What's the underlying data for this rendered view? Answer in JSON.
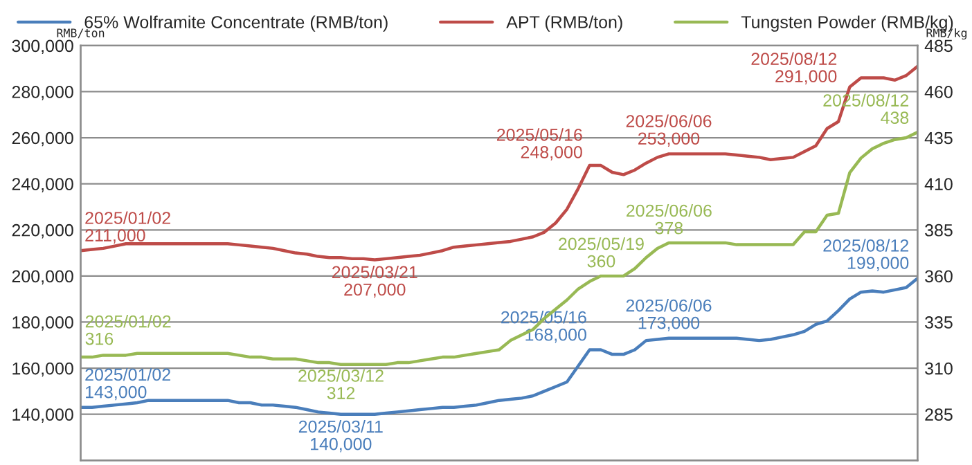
{
  "chart_data": {
    "type": "line",
    "ylabel": "RMB/ton",
    "y2label": "RMB/kg",
    "categories": [
      null,
      null,
      null,
      null,
      null,
      null,
      null,
      null,
      null,
      null,
      null,
      null,
      null,
      null,
      null,
      null,
      null,
      null,
      null,
      null,
      null,
      null,
      null,
      null,
      null,
      null,
      null,
      null,
      null,
      null,
      null,
      null,
      null,
      null,
      null,
      null,
      null,
      null,
      null,
      null,
      null,
      null,
      null,
      null,
      null,
      null,
      null,
      null,
      null,
      null,
      null,
      null,
      null,
      null,
      null,
      null,
      null,
      null,
      null,
      null,
      null,
      null,
      null,
      null,
      null,
      null,
      null,
      null,
      null,
      null,
      null,
      null,
      null,
      null,
      null
    ],
    "ylim": [
      120000,
      300000
    ],
    "yticks": [
      {
        "value": 140000,
        "label": "140,000"
      },
      {
        "value": 160000,
        "label": "160,000"
      },
      {
        "value": 180000,
        "label": "180,000"
      },
      {
        "value": 200000,
        "label": "200,000"
      },
      {
        "value": 220000,
        "label": "220,000"
      },
      {
        "value": 240000,
        "label": "240,000"
      },
      {
        "value": 260000,
        "label": "260,000"
      },
      {
        "value": 280000,
        "label": "280,000"
      },
      {
        "value": 300000,
        "label": "300,000"
      }
    ],
    "y2lim": [
      260,
      485
    ],
    "y2ticks": [
      285,
      310,
      335,
      360,
      385,
      410,
      435,
      460,
      485
    ],
    "grid": "y",
    "legend": "top",
    "tick_labels": "y",
    "marker": "none",
    "line_style": "solid",
    "series": [
      {
        "name": "65% Wolframite Concentrate (RMB/ton)",
        "color": "#4a7ebb",
        "values": [
          143000,
          143000,
          143500,
          144000,
          144500,
          145000,
          146000,
          146000,
          146000,
          146000,
          146000,
          146000,
          146000,
          146000,
          145000,
          145000,
          144000,
          144000,
          143500,
          143000,
          142000,
          141000,
          140500,
          140000,
          140000,
          140000,
          140000,
          140500,
          141000,
          141500,
          142000,
          142500,
          143000,
          143000,
          143500,
          144000,
          145000,
          146000,
          146500,
          147000,
          148000,
          150000,
          152000,
          154000,
          161000,
          168000,
          168000,
          166000,
          166000,
          168000,
          172000,
          172500,
          173000,
          173000,
          173000,
          173000,
          173000,
          173000,
          173000,
          172500,
          172000,
          172500,
          173500,
          174500,
          176000,
          179000,
          180500,
          185000,
          190000,
          193000,
          193500,
          193000,
          194000,
          195000,
          199000
        ]
      },
      {
        "name": "APT (RMB/ton)",
        "color": "#be4b48",
        "values": [
          211000,
          211500,
          212000,
          213000,
          214000,
          214000,
          214000,
          214000,
          214000,
          214000,
          214000,
          214000,
          214000,
          214000,
          213500,
          213000,
          212500,
          212000,
          211000,
          210000,
          209500,
          208500,
          208000,
          208000,
          207500,
          207500,
          207000,
          207500,
          208000,
          208500,
          209000,
          210000,
          211000,
          212500,
          213000,
          213500,
          214000,
          214500,
          215000,
          216000,
          217000,
          219000,
          223000,
          229000,
          238000,
          248000,
          248000,
          245000,
          244000,
          246000,
          249000,
          251500,
          253000,
          253000,
          253000,
          253000,
          253000,
          253000,
          252500,
          252000,
          251500,
          250500,
          251000,
          251500,
          254000,
          256500,
          264000,
          267000,
          282000,
          286000,
          286000,
          286000,
          285000,
          287000,
          291000
        ]
      },
      {
        "name": "Tungsten Powder (RMB/kg)",
        "color": "#98b954",
        "axis": "y2",
        "values": [
          316,
          316,
          317,
          317,
          317,
          318,
          318,
          318,
          318,
          318,
          318,
          318,
          318,
          318,
          317,
          316,
          316,
          315,
          315,
          315,
          314,
          313,
          313,
          312,
          312,
          312,
          312,
          312,
          313,
          313,
          314,
          315,
          316,
          316,
          317,
          318,
          319,
          320,
          325,
          328,
          331,
          337,
          342,
          347,
          353,
          357,
          360,
          360,
          360,
          364,
          370,
          375,
          378,
          378,
          378,
          378,
          378,
          378,
          377,
          377,
          377,
          377,
          377,
          377,
          384,
          384,
          393,
          394,
          416,
          424,
          429,
          432,
          434,
          435,
          438
        ]
      }
    ],
    "annotations": [
      {
        "text": "2025/01/02\n211,000",
        "y": 211000
      },
      {
        "text": "2025/03/21\n207,000",
        "y": 207000
      },
      "2025/05/16\n248,000",
      {
        "text": "2025/06/06\n253,000",
        "y": 253000
      },
      "2025/08/12\n291,000",
      "2025/01/02\n316",
      "2025/03/12\n312",
      "2025/05/19\n360",
      "2025/06/06\n378",
      "2025/08/12\n438",
      {
        "text": "2025/01/02\n143,000",
        "y": 143000
      },
      {
        "text": "2025/03/11\n140,000",
        "y": 140000
      },
      "2025/05/16\n168,000",
      {
        "text": "2025/06/06\n173,000",
        "y": 173000
      },
      "2025/08/12\n199,000"
    ]
  }
}
